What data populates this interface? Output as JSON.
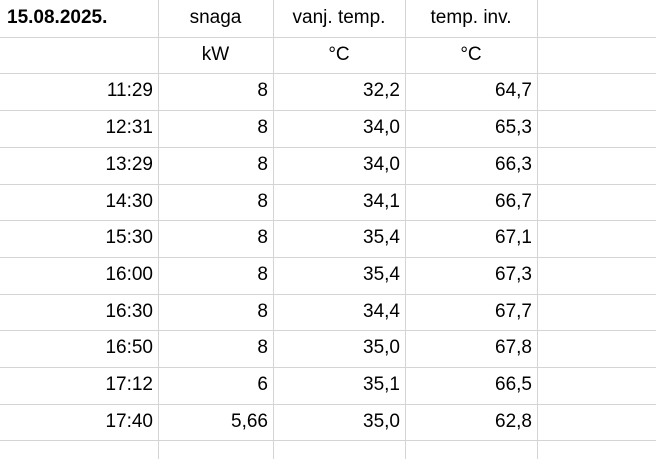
{
  "header": {
    "date": "15.08.2025.",
    "columns": [
      "snaga",
      "vanj. temp.",
      "temp. inv."
    ],
    "units": [
      "kW",
      "°C",
      "°C"
    ]
  },
  "table": {
    "rows": [
      [
        "11:29",
        "8",
        "32,2",
        "64,7"
      ],
      [
        "12:31",
        "8",
        "34,0",
        "65,3"
      ],
      [
        "13:29",
        "8",
        "34,0",
        "66,3"
      ],
      [
        "14:30",
        "8",
        "34,1",
        "66,7"
      ],
      [
        "15:30",
        "8",
        "35,4",
        "67,1"
      ],
      [
        "16:00",
        "8",
        "35,4",
        "67,3"
      ],
      [
        "16:30",
        "8",
        "34,4",
        "67,7"
      ],
      [
        "16:50",
        "8",
        "35,0",
        "67,8"
      ],
      [
        "17:12",
        "6",
        "35,1",
        "66,5"
      ],
      [
        "17:40",
        "5,66",
        "35,0",
        "62,8"
      ]
    ]
  }
}
